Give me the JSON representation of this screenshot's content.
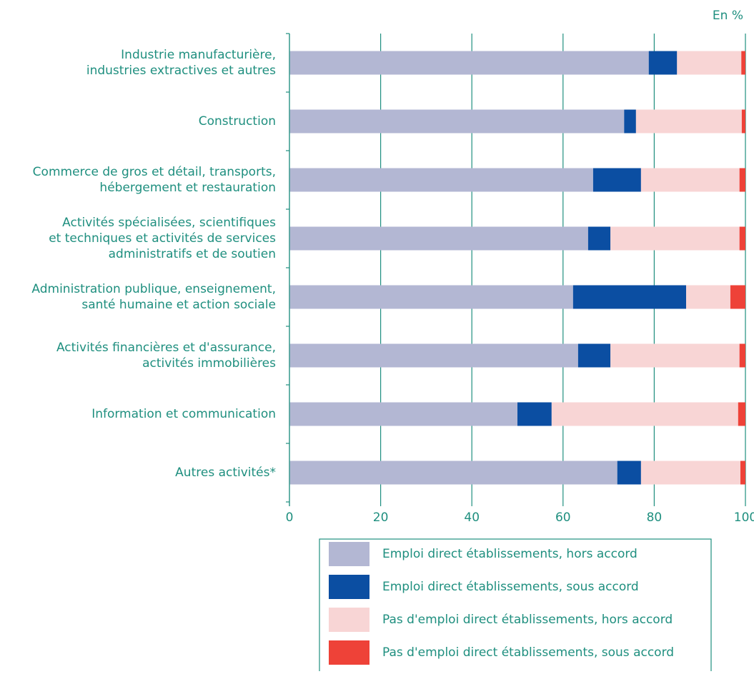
{
  "chart_data": {
    "type": "stacked_barh",
    "unit_label": "En %",
    "categories": [
      [
        "Industrie manufacturière,",
        "industries extractives et autres"
      ],
      [
        "Construction"
      ],
      [
        "Commerce de gros et détail, transports,",
        "hébergement et restauration"
      ],
      [
        "Activités spécialisées, scientifiques",
        "et techniques et activités de services",
        "administratifs et de soutien"
      ],
      [
        "Administration publique, enseignement,",
        "santé humaine et action sociale"
      ],
      [
        "Activités financières et d'assurance,",
        "activités immobilières"
      ],
      [
        "Information et communication"
      ],
      [
        "Autres activités*"
      ]
    ],
    "series": [
      {
        "name": "Emploi direct établissements, hors accord",
        "color": "#b3b7d3",
        "values": [
          78.8,
          73.4,
          66.6,
          65.5,
          62.2,
          63.3,
          50.0,
          71.9
        ]
      },
      {
        "name": "Emploi direct établissements, sous accord",
        "color": "#0b4ea2",
        "values": [
          6.2,
          2.6,
          10.5,
          4.9,
          24.8,
          7.1,
          7.5,
          5.2
        ]
      },
      {
        "name": "Pas d'emploi direct établissements, hors accord",
        "color": "#f8d5d5",
        "values": [
          14.1,
          23.2,
          21.6,
          28.3,
          9.7,
          28.3,
          40.9,
          21.8
        ]
      },
      {
        "name": "Pas d'emploi direct établissements, sous accord",
        "color": "#ee4238",
        "values": [
          0.9,
          0.8,
          1.3,
          1.3,
          3.3,
          1.3,
          1.6,
          1.1
        ]
      }
    ],
    "xlim": [
      0,
      100
    ],
    "xticks": [
      0,
      20,
      40,
      60,
      80,
      100
    ],
    "grid": true
  }
}
